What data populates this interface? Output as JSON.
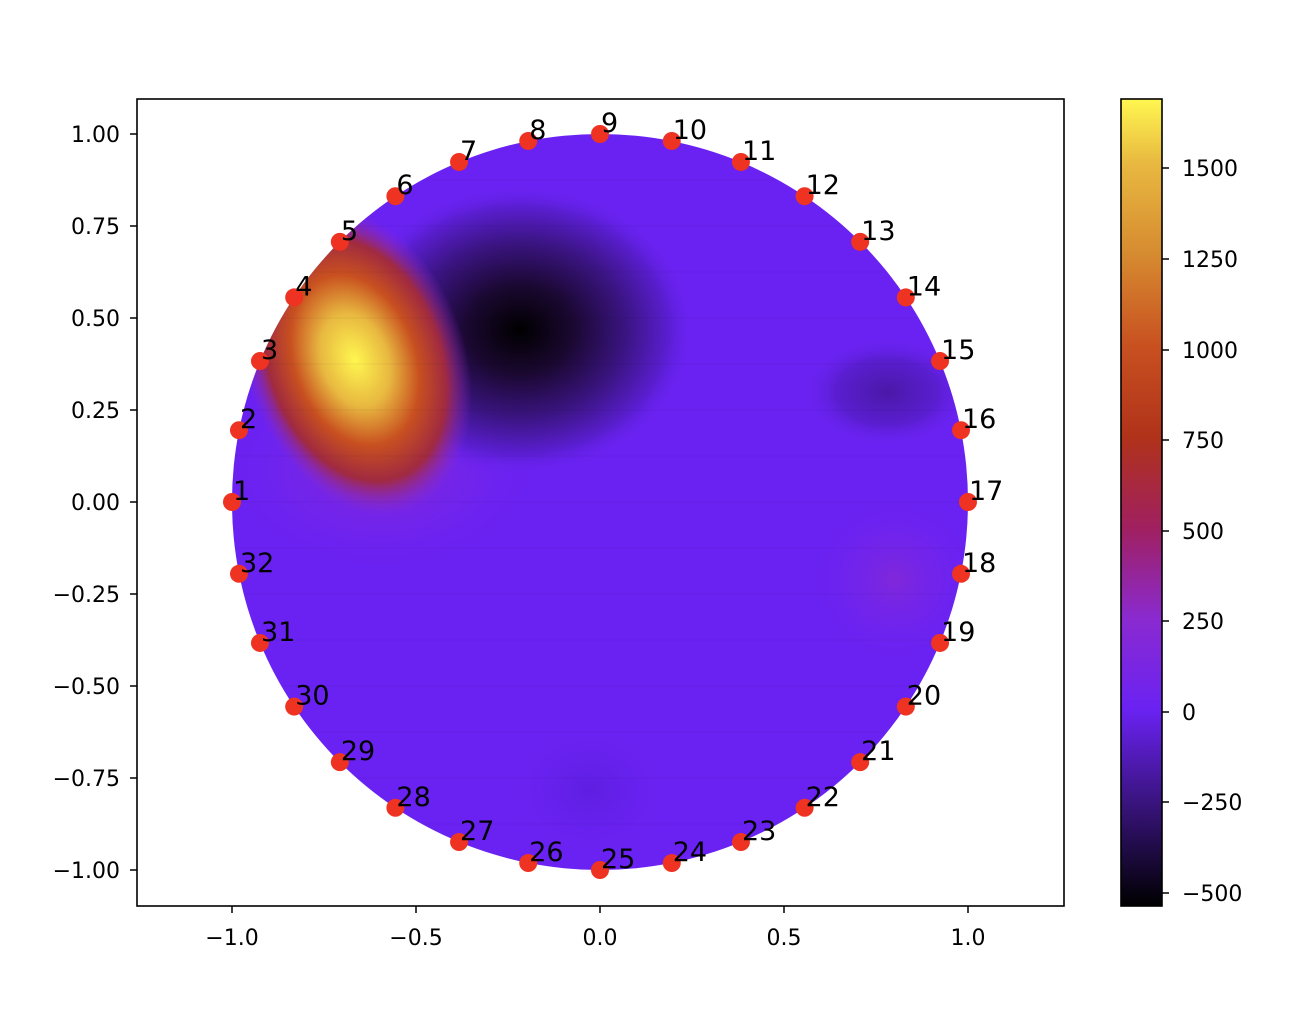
{
  "chart_data": {
    "type": "heatmap",
    "subtype": "triangulated circular field with electrode markers (EIT reconstruction)",
    "title": "",
    "xlabel": "",
    "ylabel": "",
    "xlim": [
      -1.26,
      1.26
    ],
    "ylim": [
      -1.1,
      1.1
    ],
    "grid": false,
    "aspect": "equal",
    "x_ticks": [
      -1.0,
      -0.5,
      0.0,
      0.5,
      1.0
    ],
    "x_tick_labels": [
      "−1.0",
      "−0.5",
      "0.0",
      "0.5",
      "1.0"
    ],
    "y_ticks": [
      1.0,
      0.75,
      0.5,
      0.25,
      0.0,
      -0.25,
      -0.5,
      -0.75,
      -1.0
    ],
    "y_tick_labels": [
      "1.00",
      "0.75",
      "0.50",
      "0.25",
      "0.00",
      "−0.25",
      "−0.50",
      "−0.75",
      "−1.00"
    ],
    "domain": {
      "shape": "circle",
      "center": [
        0,
        0
      ],
      "radius": 1.0
    },
    "colormap": "gnuplot-like (black → purple → red → orange → yellow)",
    "colorbar": {
      "range": [
        -540,
        1680
      ],
      "ticks": [
        1500,
        1250,
        1000,
        750,
        500,
        250,
        0,
        -250,
        -500
      ],
      "tick_labels": [
        "1500",
        "1250",
        "1000",
        "750",
        "500",
        "250",
        "0",
        "−250",
        "−500"
      ],
      "position": "right"
    },
    "background_value": 0,
    "features": [
      {
        "name": "positive anomaly (hot spot)",
        "center": [
          -0.68,
          0.44
        ],
        "peak_value": 1650,
        "extent_radius": 0.3
      },
      {
        "name": "negative anomaly (dark spot)",
        "center": [
          -0.2,
          0.47
        ],
        "peak_value": -540,
        "extent_radius": 0.35
      },
      {
        "name": "weak negative anomaly",
        "center": [
          0.78,
          0.3
        ],
        "peak_value": -220,
        "extent_radius": 0.18
      },
      {
        "name": "weak positive halo",
        "center": [
          0.8,
          -0.22
        ],
        "peak_value": 180,
        "extent_radius": 0.2
      },
      {
        "name": "weak negative shadow",
        "center": [
          0.0,
          -0.78
        ],
        "peak_value": -60,
        "extent_radius": 0.2
      }
    ],
    "electrodes": {
      "count": 32,
      "marker_color": "#ee3322",
      "points": [
        {
          "label": "1",
          "x": -1.0,
          "y": 0.0
        },
        {
          "label": "2",
          "x": -0.981,
          "y": 0.195
        },
        {
          "label": "3",
          "x": -0.924,
          "y": 0.383
        },
        {
          "label": "4",
          "x": -0.831,
          "y": 0.556
        },
        {
          "label": "5",
          "x": -0.707,
          "y": 0.707
        },
        {
          "label": "6",
          "x": -0.556,
          "y": 0.831
        },
        {
          "label": "7",
          "x": -0.383,
          "y": 0.924
        },
        {
          "label": "8",
          "x": -0.195,
          "y": 0.981
        },
        {
          "label": "9",
          "x": 0.0,
          "y": 1.0
        },
        {
          "label": "10",
          "x": 0.195,
          "y": 0.981
        },
        {
          "label": "11",
          "x": 0.383,
          "y": 0.924
        },
        {
          "label": "12",
          "x": 0.556,
          "y": 0.831
        },
        {
          "label": "13",
          "x": 0.707,
          "y": 0.707
        },
        {
          "label": "14",
          "x": 0.831,
          "y": 0.556
        },
        {
          "label": "15",
          "x": 0.924,
          "y": 0.383
        },
        {
          "label": "16",
          "x": 0.981,
          "y": 0.195
        },
        {
          "label": "17",
          "x": 1.0,
          "y": 0.0
        },
        {
          "label": "18",
          "x": 0.981,
          "y": -0.195
        },
        {
          "label": "19",
          "x": 0.924,
          "y": -0.383
        },
        {
          "label": "20",
          "x": 0.831,
          "y": -0.556
        },
        {
          "label": "21",
          "x": 0.707,
          "y": -0.707
        },
        {
          "label": "22",
          "x": 0.556,
          "y": -0.831
        },
        {
          "label": "23",
          "x": 0.383,
          "y": -0.924
        },
        {
          "label": "24",
          "x": 0.195,
          "y": -0.981
        },
        {
          "label": "25",
          "x": 0.0,
          "y": -1.0
        },
        {
          "label": "26",
          "x": -0.195,
          "y": -0.981
        },
        {
          "label": "27",
          "x": -0.383,
          "y": -0.924
        },
        {
          "label": "28",
          "x": -0.556,
          "y": -0.831
        },
        {
          "label": "29",
          "x": -0.707,
          "y": -0.707
        },
        {
          "label": "30",
          "x": -0.831,
          "y": -0.556
        },
        {
          "label": "31",
          "x": -0.924,
          "y": -0.383
        },
        {
          "label": "32",
          "x": -0.981,
          "y": -0.195
        }
      ]
    }
  },
  "colors": {
    "background_field": "#6a22f2",
    "marker": "#ee3322",
    "axis": "#000000",
    "colormap_stops": [
      {
        "value": -540,
        "color": "#000000"
      },
      {
        "value": -250,
        "color": "#3a1480"
      },
      {
        "value": 0,
        "color": "#6a22f2"
      },
      {
        "value": 250,
        "color": "#8a2ad0"
      },
      {
        "value": 500,
        "color": "#a02060"
      },
      {
        "value": 750,
        "color": "#b0321a"
      },
      {
        "value": 1000,
        "color": "#c85020"
      },
      {
        "value": 1250,
        "color": "#d68a30"
      },
      {
        "value": 1500,
        "color": "#e8b840"
      },
      {
        "value": 1680,
        "color": "#fff650"
      }
    ]
  }
}
